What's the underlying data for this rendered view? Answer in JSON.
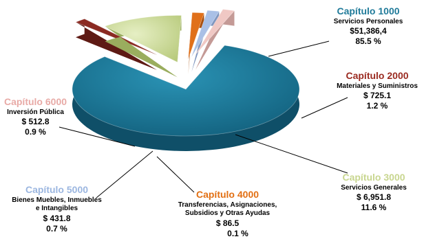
{
  "chart_data": {
    "type": "pie",
    "slices": [
      {
        "capitulo": "Capítulo 1000",
        "concept": "Servicios Personales",
        "value_text": "$51,386,4",
        "percent_text": "85.5 %",
        "value": 51386.4,
        "percent": 85.5,
        "color": "#1f7a99",
        "label_color": "#1f7a99"
      },
      {
        "capitulo": "Capítulo 2000",
        "concept": "Materiales y Suministros",
        "value_text": "$ 725.1",
        "percent_text": "1.2 %",
        "value": 725.1,
        "percent": 1.2,
        "color": "#8b2a22",
        "label_color": "#9a2a20"
      },
      {
        "capitulo": "Capítulo 3000",
        "concept": "Servicios Generales",
        "value_text": "$ 6,951.8",
        "percent_text": "11.6 %",
        "value": 6951.8,
        "percent": 11.6,
        "color": "#cfdca0",
        "label_color": "#c8d68f"
      },
      {
        "capitulo": "Capítulo 4000",
        "concept": "Transferencias, Asignaciones, Subsidios y Otras Ayudas",
        "value_text": "$ 86.5",
        "percent_text": "0.1 %",
        "value": 86.5,
        "percent": 0.1,
        "color": "#e0701a",
        "label_color": "#e26f12"
      },
      {
        "capitulo": "Capítulo 5000",
        "concept": "Bienes Muebles, Inmuebles e Intangibles",
        "value_text": "$ 431.8",
        "percent_text": "0.7 %",
        "value": 431.8,
        "percent": 0.7,
        "color": "#a9c0e6",
        "label_color": "#9bb6e0"
      },
      {
        "capitulo": "Capítulo 6000",
        "concept": "Inversión Pública",
        "value_text": "$ 512.8",
        "percent_text": "0.9 %",
        "value": 512.8,
        "percent": 0.9,
        "color": "#f0c8c4",
        "label_color": "#e8aaa6"
      }
    ]
  }
}
